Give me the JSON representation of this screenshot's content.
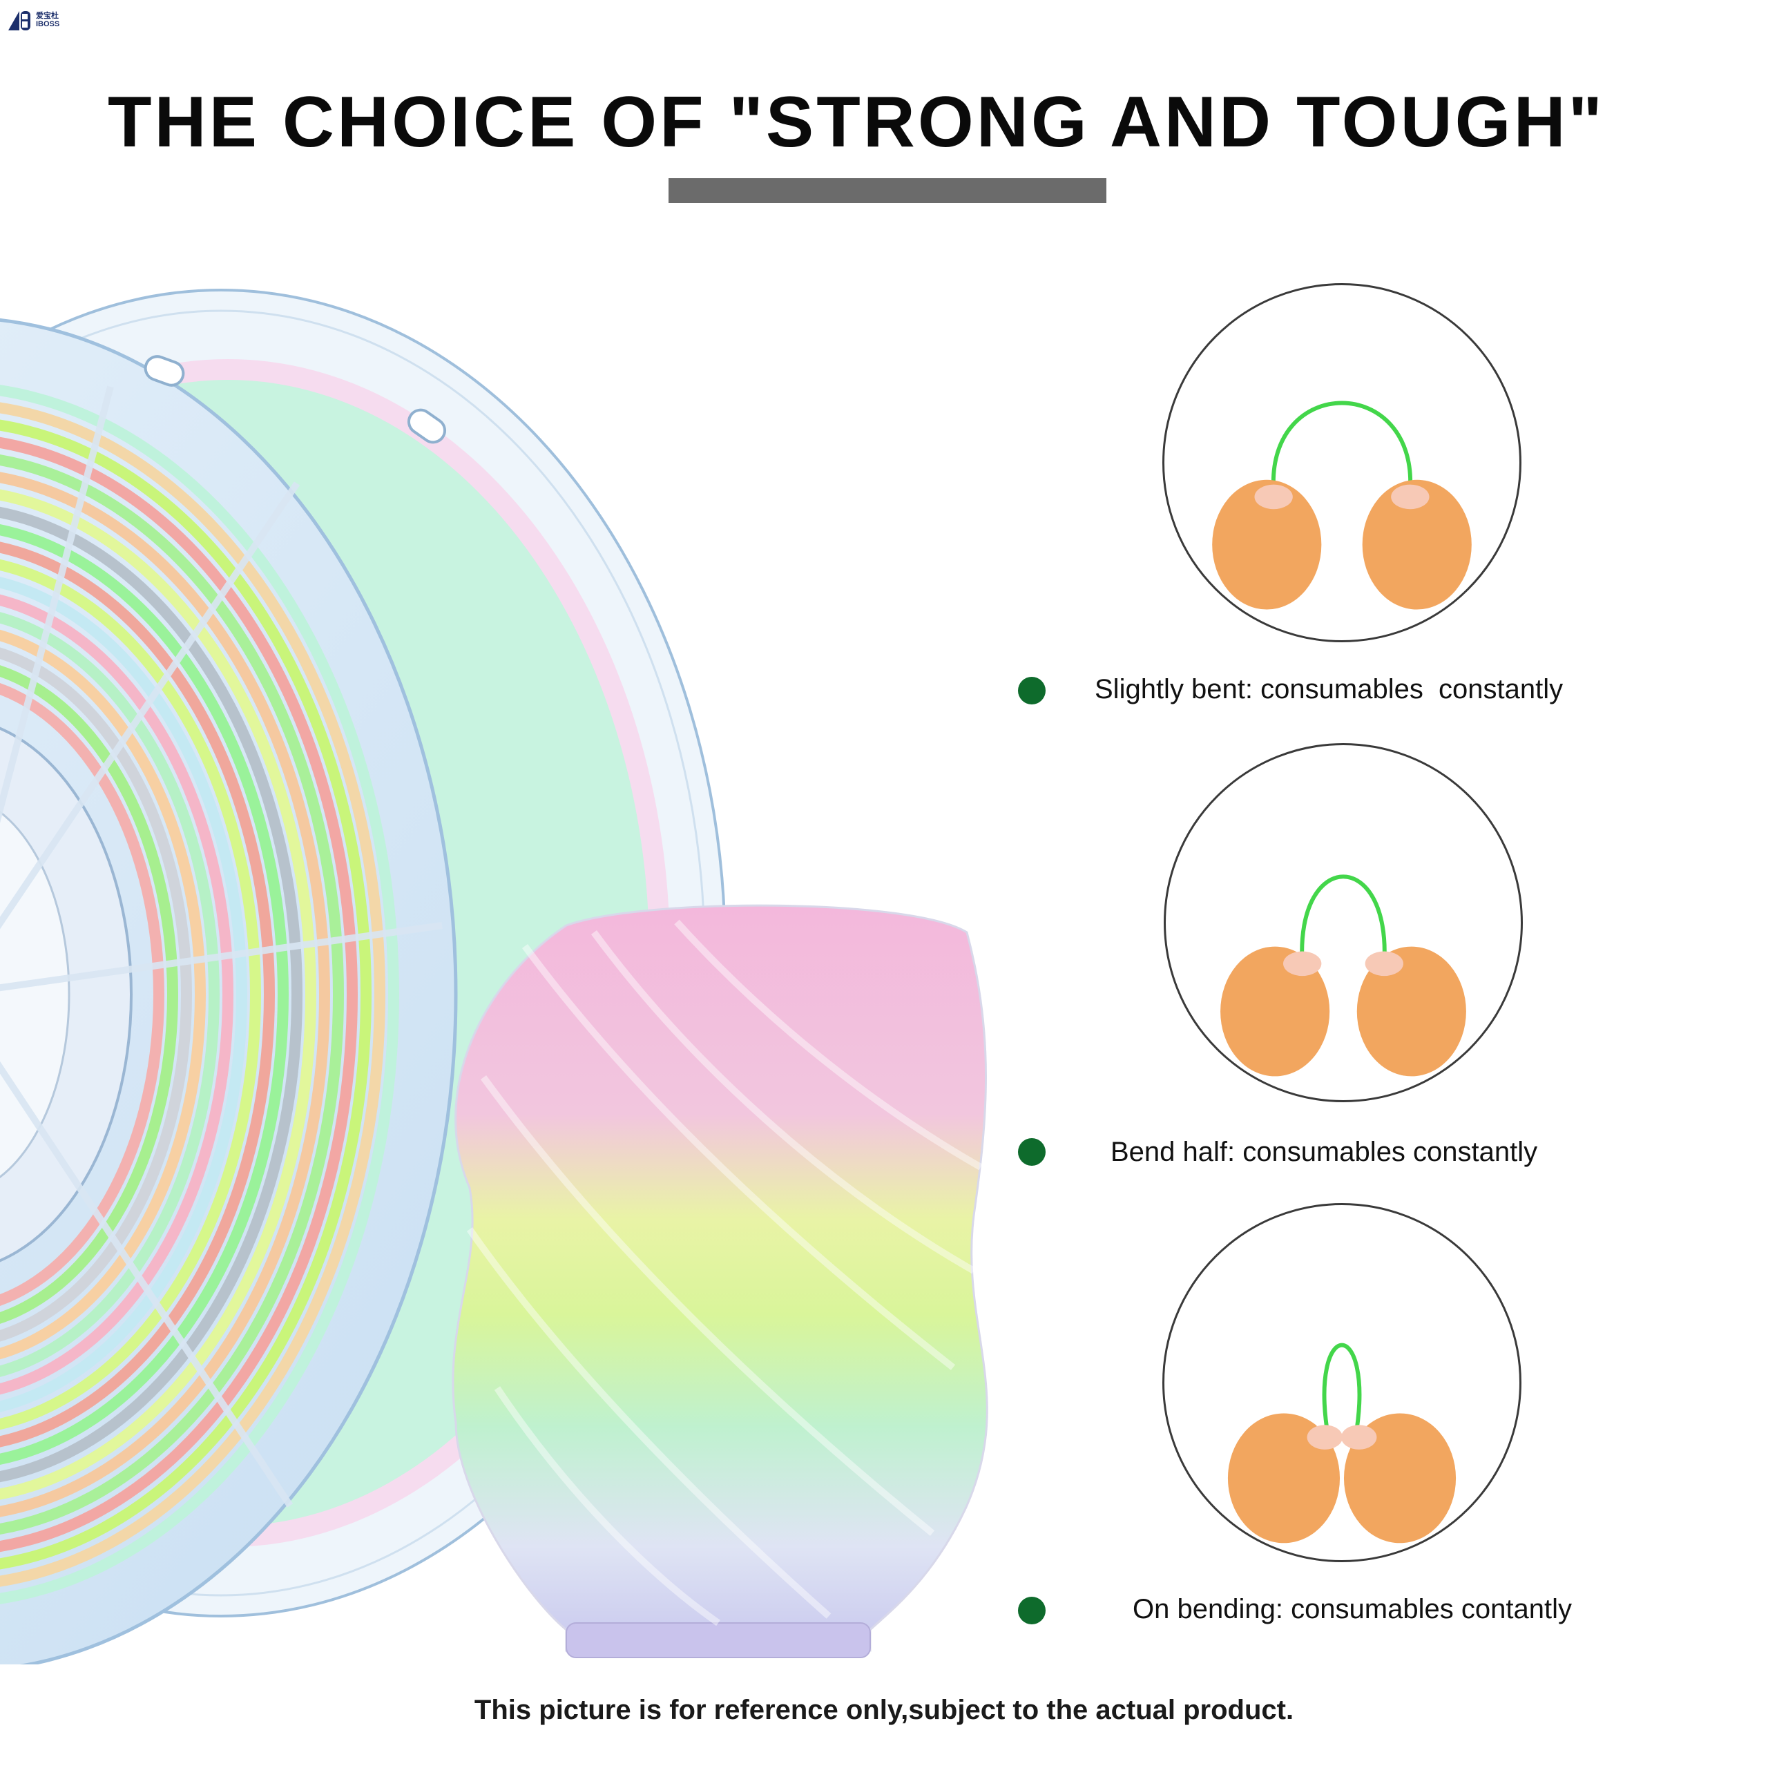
{
  "brand": {
    "logo_alt": "AIBOSS",
    "chinese_name": "爱宝杜",
    "latin_name": "IBOSS"
  },
  "header": {
    "title": "THE CHOICE OF \"STRONG AND TOUGH\""
  },
  "features": [
    {
      "caption": "Slightly bent: consumables  constantly",
      "icon": "hands-bending-filament-slight"
    },
    {
      "caption": "Bend half: consumables constantly",
      "icon": "hands-bending-filament-half"
    },
    {
      "caption": "On bending: consumables contantly",
      "icon": "hands-bending-filament-full"
    }
  ],
  "footer": {
    "disclaimer": "This picture is for reference only,subject to the actual product."
  },
  "colors": {
    "bullet": "#0e6b2c",
    "title_bar": "#6b6b6b",
    "filament": "#43d64a"
  }
}
